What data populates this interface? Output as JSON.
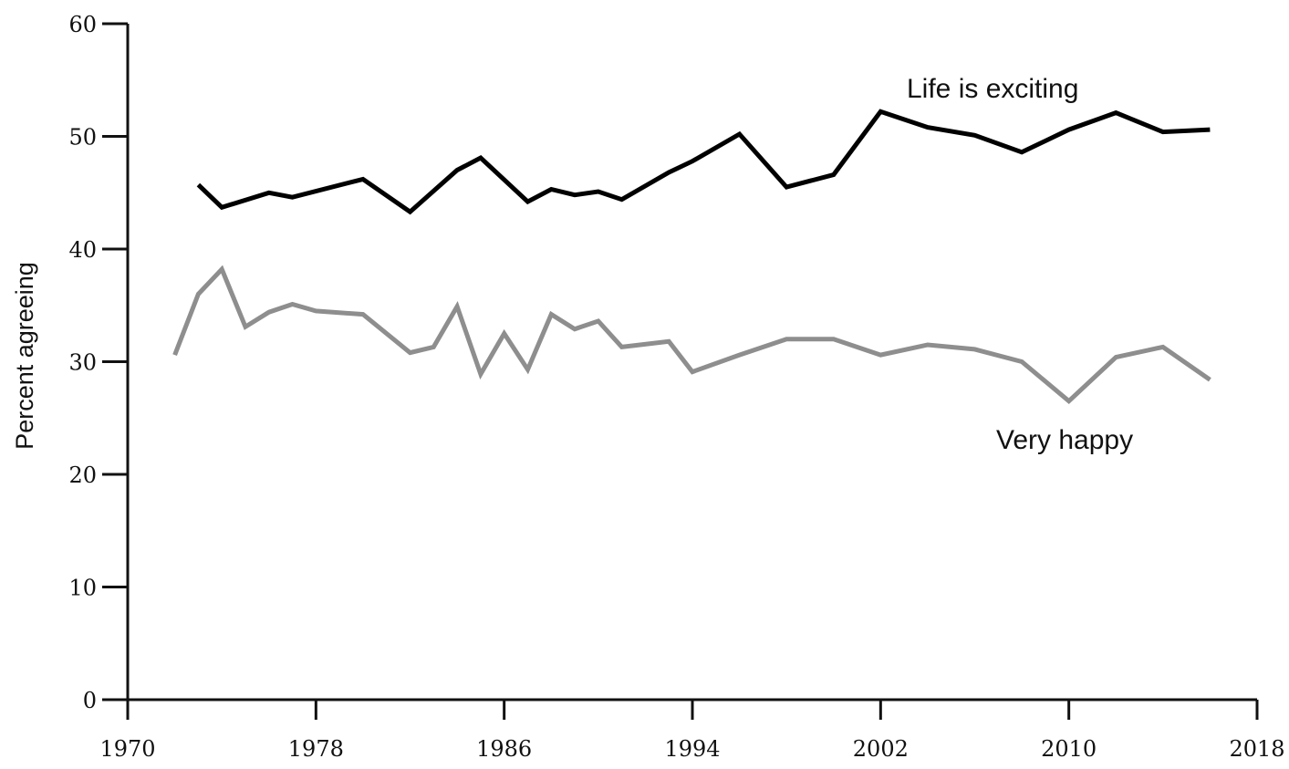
{
  "chart_data": {
    "type": "line",
    "xlabel": "",
    "ylabel": "Percent agreeing",
    "xlim": [
      1970,
      2018
    ],
    "ylim": [
      0,
      60
    ],
    "x_ticks": [
      1970,
      1978,
      1986,
      1994,
      2002,
      2010,
      2018
    ],
    "y_ticks": [
      0,
      10,
      20,
      30,
      40,
      50,
      60
    ],
    "grid": false,
    "legend": "none",
    "series": [
      {
        "name": "Life is exciting",
        "color": "#000000",
        "x": [
          1973,
          1974,
          1976,
          1977,
          1980,
          1982,
          1984,
          1985,
          1987,
          1988,
          1989,
          1990,
          1991,
          1993,
          1994,
          1996,
          1998,
          2000,
          2002,
          2004,
          2006,
          2008,
          2010,
          2012,
          2014,
          2016
        ],
        "y": [
          45.7,
          43.7,
          45.0,
          44.6,
          46.2,
          43.3,
          47.0,
          48.1,
          44.2,
          45.3,
          44.8,
          45.1,
          44.4,
          46.8,
          47.8,
          50.2,
          45.5,
          46.6,
          52.2,
          50.8,
          50.1,
          48.6,
          50.6,
          52.1,
          50.4,
          50.6
        ]
      },
      {
        "name": "Very happy",
        "color": "#8e8e8e",
        "x": [
          1972,
          1973,
          1974,
          1975,
          1976,
          1977,
          1978,
          1980,
          1982,
          1983,
          1984,
          1985,
          1986,
          1987,
          1988,
          1989,
          1990,
          1991,
          1993,
          1994,
          1996,
          1998,
          2000,
          2002,
          2004,
          2006,
          2008,
          2010,
          2012,
          2014,
          2016
        ],
        "y": [
          30.6,
          36.0,
          38.2,
          33.1,
          34.4,
          35.1,
          34.5,
          34.2,
          30.8,
          31.3,
          34.9,
          28.9,
          32.5,
          29.3,
          34.2,
          32.9,
          33.6,
          31.3,
          31.8,
          29.1,
          30.6,
          32.0,
          32.0,
          30.6,
          31.5,
          31.1,
          30.0,
          26.5,
          30.4,
          31.3,
          28.4
        ]
      }
    ]
  }
}
